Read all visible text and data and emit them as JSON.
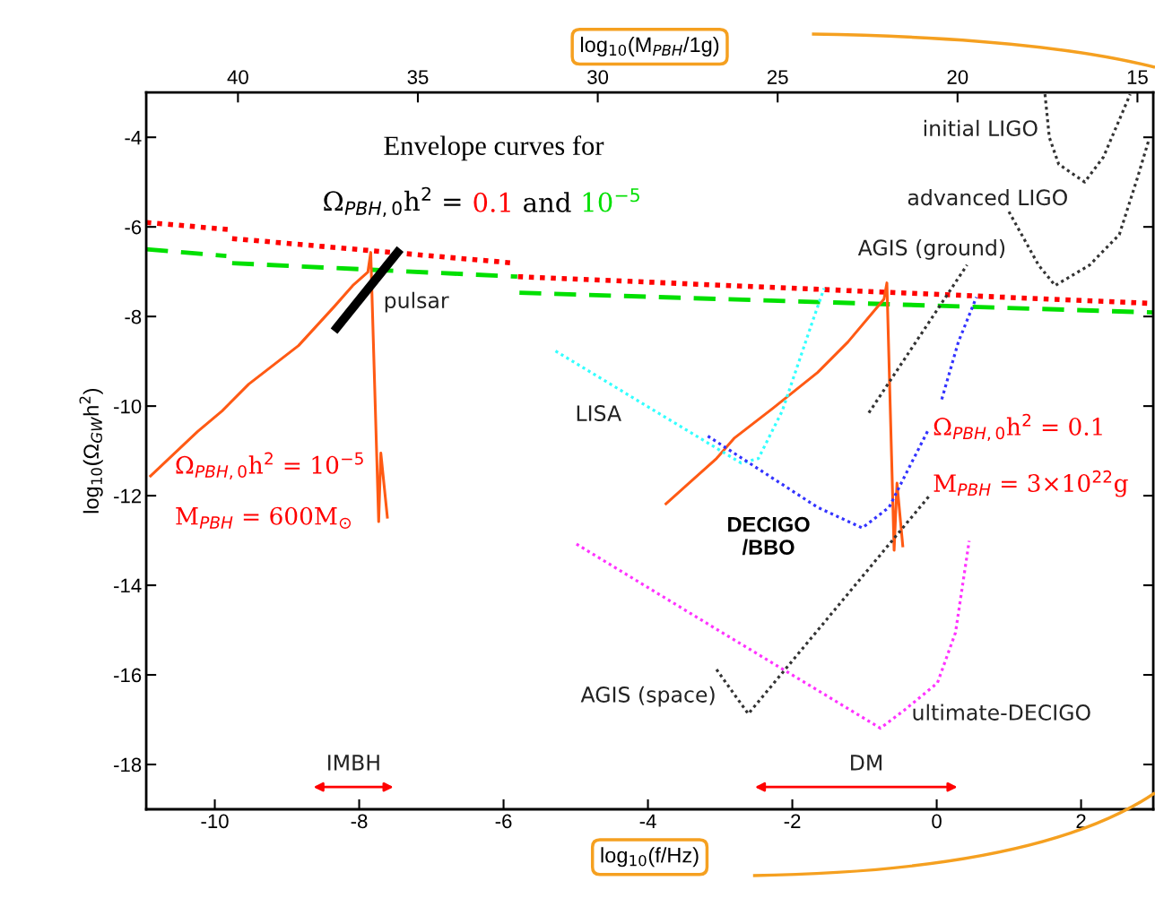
{
  "chart_data": {
    "type": "line",
    "title": "Envelope curves for",
    "xlabel": "log$_{10}$(f/Hz)",
    "ylabel": "log$_{10}$(Ω$_{GW}$h$^{2}$)",
    "x2label": "log$_{10}$(M$_{PBH}$/1g)",
    "xlim": [
      -10.95,
      3
    ],
    "xticks": [
      -10,
      -8,
      -6,
      -4,
      -2,
      0,
      2
    ],
    "ylim": [
      -19,
      -3
    ],
    "yticks": [
      -4,
      -6,
      -8,
      -10,
      -12,
      -14,
      -16,
      -18
    ],
    "x2lim": [
      42.55,
      14.56
    ],
    "x2ticks": [
      40,
      35,
      30,
      25,
      20,
      15
    ],
    "grid": false,
    "annotations": [
      "Ω$_{PBH,0}$h$^{2}$ =",
      "0.1",
      "and",
      "10$^{−5}$",
      "initial LIGO",
      "advanced LIGO",
      "AGIS (ground)",
      "pulsar",
      "LISA",
      "DECIGO\n/BBO",
      "AGIS (space)",
      "ultimate-DECIGO",
      "Ω$_{PBH,0}$h$^{2}$ = 10$^{−5}$",
      "M$_{PBH}$ = 600M$_{⊙}$",
      "Ω$_{PBH,0}$h$^{2}$ = 0.1",
      "M$_{PBH}$ = 3×10$^{22}$g",
      "IMBH",
      "DM"
    ],
    "series": [
      {
        "color": "#ff0000",
        "line_style": "dotted",
        "x": [
          -10.95,
          -9.8,
          -9.78,
          -9.76,
          -5.84,
          -5.82,
          -5.8,
          3.0
        ],
        "values": [
          -5.9,
          -6.06,
          null,
          -6.26,
          -6.81,
          null,
          -7.11,
          -7.71
        ]
      },
      {
        "color": "#00e000",
        "line_style": "dashed",
        "x": [
          -10.95,
          -9.84,
          -9.8,
          -9.76,
          -5.81,
          -5.8,
          -5.78,
          3.0
        ],
        "values": [
          -6.5,
          -6.65,
          null,
          -6.81,
          -7.11,
          null,
          -7.47,
          -7.91
        ]
      },
      {
        "color": "#ff5a14",
        "line_style": "solid",
        "x": [
          -10.89,
          -10.24,
          -9.9,
          -9.53,
          -8.84,
          -8.34,
          -8.09,
          -7.88,
          -7.84,
          -7.73,
          -7.7,
          -7.61
        ],
        "values": [
          -11.56,
          -10.57,
          -10.11,
          -9.51,
          -8.65,
          -7.77,
          -7.31,
          -7.01,
          -6.57,
          -12.58,
          -11.05,
          -12.48
        ]
      },
      {
        "color": "#ff5a14",
        "line_style": "solid",
        "x": [
          -3.75,
          -3.05,
          -2.8,
          -2.27,
          -1.65,
          -1.23,
          -0.73,
          -0.69,
          -0.59,
          -0.55,
          -0.47
        ],
        "values": [
          -12.18,
          -11.17,
          -10.71,
          -10.05,
          -9.25,
          -8.57,
          -7.61,
          -7.25,
          -13.22,
          -11.72,
          -13.12
        ]
      },
      {
        "color": "#000000",
        "line_style": "solid",
        "x": [
          -8.31,
          -7.47
        ],
        "values": [
          -8.25,
          -6.57
        ]
      },
      {
        "color": "#33ffff",
        "line_style": "dotted",
        "x": [
          -5.28,
          -2.71,
          -2.47,
          -2.14,
          -1.93,
          -1.72,
          -1.56
        ],
        "values": [
          -8.77,
          -11.27,
          -11.17,
          -10.11,
          -9.11,
          -8.11,
          -7.37
        ]
      },
      {
        "color": "#3333ff",
        "line_style": "dotted",
        "x": [
          -3.17,
          -1.65,
          -1.03,
          -0.66,
          -0.41,
          -0.11,
          -0.02,
          0.07,
          0.3,
          0.55
        ],
        "values": [
          -10.67,
          -12.26,
          -12.72,
          -12.26,
          -11.46,
          -10.51,
          null,
          -9.85,
          -8.57,
          -7.57
        ]
      },
      {
        "color": "#ff33ff",
        "line_style": "dotted",
        "x": [
          -4.99,
          -3.05,
          -0.78,
          -0.45,
          0.01,
          0.26,
          0.45
        ],
        "values": [
          -13.08,
          -14.98,
          -17.19,
          -16.79,
          -16.18,
          -15.06,
          -13.01
        ]
      },
      {
        "color": "#333333",
        "line_style": "dotted",
        "x": [
          -3.05,
          -2.61,
          -0.11
        ],
        "values": [
          -15.88,
          -16.87,
          -12.02
        ]
      },
      {
        "color": "#333333",
        "line_style": "dotted",
        "x": [
          -0.94,
          0.42
        ],
        "values": [
          -10.15,
          -6.85
        ]
      },
      {
        "color": "#333333",
        "line_style": "dotted",
        "x": [
          1.5,
          1.56,
          1.69,
          2.05,
          2.31,
          2.68
        ],
        "values": [
          -3.04,
          -4.0,
          -4.6,
          -5.0,
          -4.44,
          -3.04
        ]
      },
      {
        "color": "#333333",
        "line_style": "dotted",
        "x": [
          1.0,
          1.41,
          1.64,
          2.12,
          2.53,
          2.78,
          2.94
        ],
        "values": [
          -5.66,
          -6.85,
          -7.31,
          -6.85,
          -6.17,
          -4.91,
          -4.05
        ]
      }
    ]
  }
}
